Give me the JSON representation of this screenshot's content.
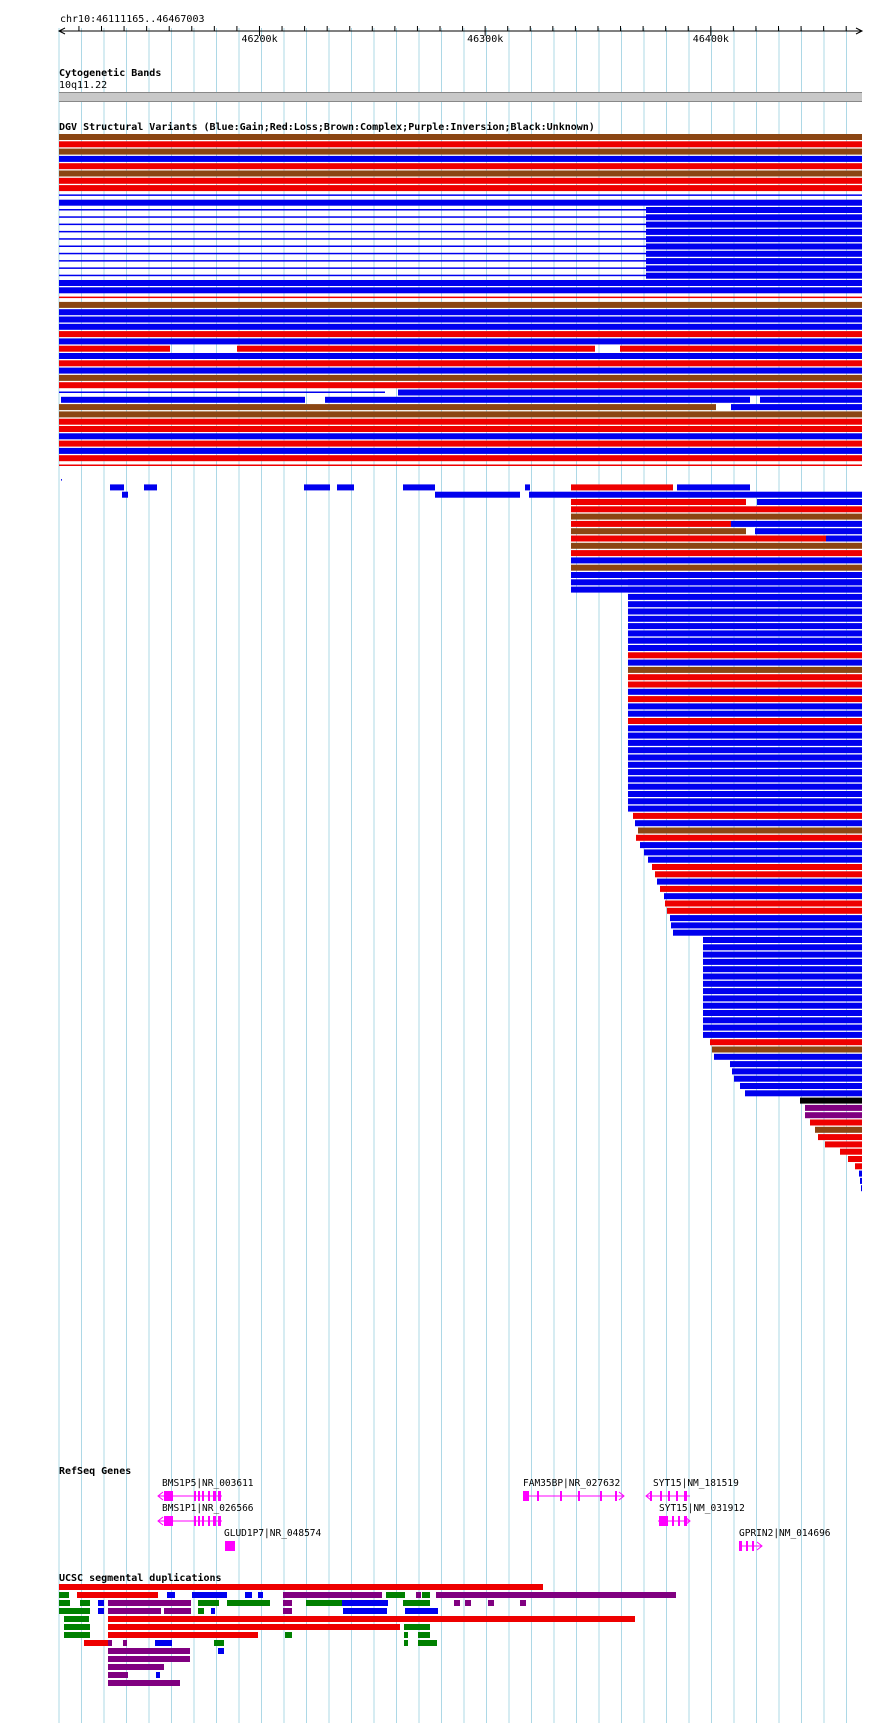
{
  "ruler": {
    "position_label": "chr10:46111165..46467003",
    "ticks": [
      {
        "label": "46200k",
        "pos": 46200000
      },
      {
        "label": "46300k",
        "pos": 46300000
      },
      {
        "label": "46400k",
        "pos": 46400000
      }
    ]
  },
  "region": {
    "start": 46111165,
    "end": 46467003
  },
  "cytoband": {
    "title": "Cytogenetic Bands",
    "band": "10q11.22"
  },
  "dgv": {
    "title": "DGV Structural Variants (Blue:Gain;Red:Loss;Brown:Complex;Purple:Inversion;Black:Unknown)",
    "colors": {
      "gain": "#0000ee",
      "loss": "#ee0000",
      "complex": "#8b4513",
      "inversion": "#800080",
      "unknown": "#000000"
    }
  },
  "refseq": {
    "title": "RefSeq Genes",
    "gene_color": "#ff00ff",
    "genes": [
      {
        "name": "BMS1P5|NR_003611"
      },
      {
        "name": "BMS1P1|NR_026566"
      },
      {
        "name": "GLUD1P7|NR_048574"
      },
      {
        "name": "FAM35BP|NR_027632"
      },
      {
        "name": "SYT15|NM_181519"
      },
      {
        "name": "SYT15|NM_031912"
      },
      {
        "name": "GPRIN2|NM_014696"
      }
    ]
  },
  "segdups": {
    "title": "UCSC segmental duplications",
    "colors": {
      "red": "#ee0000",
      "blue": "#0000ee",
      "purple": "#800080",
      "green": "#008000"
    }
  }
}
